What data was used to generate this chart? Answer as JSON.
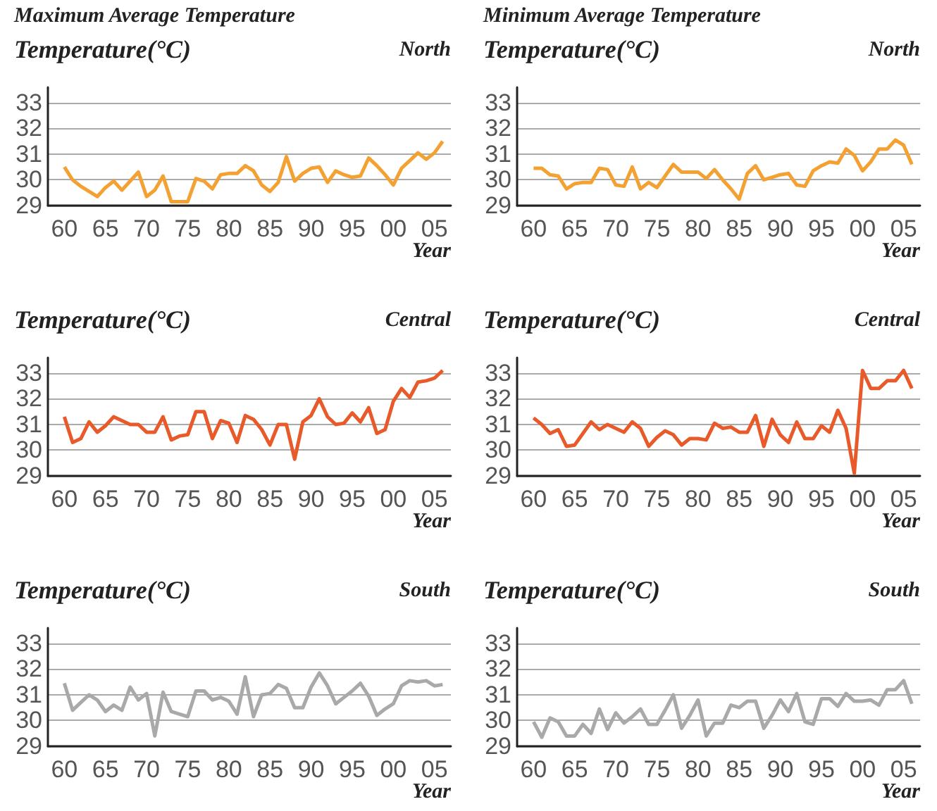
{
  "chart_data": [
    {
      "type": "line",
      "title": "Maximum Average Temperature",
      "ylabel": "Temperature(°C)",
      "subtitle": "North",
      "xlabel": "Year",
      "color": "#f3a132",
      "marker": "none",
      "grid": "y",
      "x": [
        1960,
        1961,
        1962,
        1963,
        1964,
        1965,
        1966,
        1967,
        1968,
        1969,
        1970,
        1971,
        1972,
        1973,
        1974,
        1975,
        1976,
        1977,
        1978,
        1979,
        1980,
        1981,
        1982,
        1983,
        1984,
        1985,
        1986,
        1987,
        1988,
        1989,
        1990,
        1991,
        1992,
        1993,
        1994,
        1995,
        1996,
        1997,
        1998,
        1999,
        2000,
        2001,
        2002,
        2003,
        2004,
        2005,
        2006
      ],
      "values": [
        30.5,
        30.0,
        29.75,
        29.55,
        29.35,
        29.7,
        29.95,
        29.6,
        29.95,
        30.3,
        29.35,
        29.6,
        30.15,
        29.15,
        29.15,
        29.15,
        30.05,
        29.95,
        29.65,
        30.2,
        30.25,
        30.25,
        30.55,
        30.35,
        29.8,
        29.55,
        29.9,
        30.9,
        29.95,
        30.25,
        30.45,
        30.5,
        29.9,
        30.35,
        30.2,
        30.1,
        30.15,
        30.85,
        30.55,
        30.2,
        29.8,
        30.45,
        30.75,
        31.05,
        30.8,
        31.05,
        31.5
      ],
      "xlim": [
        1958,
        2007
      ],
      "xticks": [
        {
          "value": 1960,
          "label": "60"
        },
        {
          "value": 1965,
          "label": "65"
        },
        {
          "value": 1970,
          "label": "70"
        },
        {
          "value": 1975,
          "label": "75"
        },
        {
          "value": 1980,
          "label": "80"
        },
        {
          "value": 1985,
          "label": "85"
        },
        {
          "value": 1990,
          "label": "90"
        },
        {
          "value": 1995,
          "label": "95"
        },
        {
          "value": 2000,
          "label": "00"
        },
        {
          "value": 2005,
          "label": "05"
        }
      ],
      "ylim": [
        29,
        33.6
      ],
      "yticks": [
        29,
        30,
        31,
        32,
        33
      ]
    },
    {
      "type": "line",
      "title": "Minimum Average Temperature",
      "ylabel": "Temperature(°C)",
      "subtitle": "North",
      "xlabel": "Year",
      "color": "#f3a132",
      "marker": "none",
      "grid": "y",
      "x": [
        1960,
        1961,
        1962,
        1963,
        1964,
        1965,
        1966,
        1967,
        1968,
        1969,
        1970,
        1971,
        1972,
        1973,
        1974,
        1975,
        1976,
        1977,
        1978,
        1979,
        1980,
        1981,
        1982,
        1983,
        1984,
        1985,
        1986,
        1987,
        1988,
        1989,
        1990,
        1991,
        1992,
        1993,
        1994,
        1995,
        1996,
        1997,
        1998,
        1999,
        2000,
        2001,
        2002,
        2003,
        2004,
        2005,
        2006
      ],
      "values": [
        30.45,
        30.45,
        30.2,
        30.15,
        29.65,
        29.85,
        29.9,
        29.9,
        30.45,
        30.4,
        29.8,
        29.75,
        30.5,
        29.65,
        29.9,
        29.7,
        30.15,
        30.6,
        30.3,
        30.3,
        30.3,
        30.05,
        30.4,
        30.0,
        29.65,
        29.25,
        30.25,
        30.55,
        30.0,
        30.1,
        30.2,
        30.25,
        29.8,
        29.75,
        30.35,
        30.55,
        30.7,
        30.65,
        31.2,
        30.95,
        30.35,
        30.7,
        31.2,
        31.2,
        31.55,
        31.35,
        30.6
      ],
      "xlim": [
        1958,
        2007
      ],
      "xticks": [
        {
          "value": 1960,
          "label": "60"
        },
        {
          "value": 1965,
          "label": "65"
        },
        {
          "value": 1970,
          "label": "70"
        },
        {
          "value": 1975,
          "label": "75"
        },
        {
          "value": 1980,
          "label": "80"
        },
        {
          "value": 1985,
          "label": "85"
        },
        {
          "value": 1990,
          "label": "90"
        },
        {
          "value": 1995,
          "label": "95"
        },
        {
          "value": 2000,
          "label": "00"
        },
        {
          "value": 2005,
          "label": "05"
        }
      ],
      "ylim": [
        29,
        33.6
      ],
      "yticks": [
        29,
        30,
        31,
        32,
        33
      ]
    },
    {
      "type": "line",
      "ylabel": "Temperature(°C)",
      "subtitle": "Central",
      "xlabel": "Year",
      "color": "#e85a2a",
      "marker": "none",
      "grid": "y",
      "x": [
        1960,
        1961,
        1962,
        1963,
        1964,
        1965,
        1966,
        1967,
        1968,
        1969,
        1970,
        1971,
        1972,
        1973,
        1974,
        1975,
        1976,
        1977,
        1978,
        1979,
        1980,
        1981,
        1982,
        1983,
        1984,
        1985,
        1986,
        1987,
        1988,
        1989,
        1990,
        1991,
        1992,
        1993,
        1994,
        1995,
        1996,
        1997,
        1998,
        1999,
        2000,
        2001,
        2002,
        2003,
        2004,
        2005,
        2006
      ],
      "values": [
        31.3,
        30.3,
        30.45,
        31.1,
        30.7,
        30.95,
        31.3,
        31.15,
        31.0,
        31.0,
        30.7,
        30.7,
        31.3,
        30.4,
        30.55,
        30.6,
        31.5,
        31.5,
        30.45,
        31.15,
        31.05,
        30.3,
        31.35,
        31.2,
        30.8,
        30.2,
        31.0,
        31.0,
        29.65,
        31.1,
        31.35,
        32.0,
        31.3,
        31.0,
        31.05,
        31.45,
        31.1,
        31.65,
        30.65,
        30.8,
        31.9,
        32.4,
        32.05,
        32.65,
        32.7,
        32.8,
        33.1
      ],
      "xlim": [
        1958,
        2007
      ],
      "xticks": [
        {
          "value": 1960,
          "label": "60"
        },
        {
          "value": 1965,
          "label": "65"
        },
        {
          "value": 1970,
          "label": "70"
        },
        {
          "value": 1975,
          "label": "75"
        },
        {
          "value": 1980,
          "label": "80"
        },
        {
          "value": 1985,
          "label": "85"
        },
        {
          "value": 1990,
          "label": "90"
        },
        {
          "value": 1995,
          "label": "95"
        },
        {
          "value": 2000,
          "label": "00"
        },
        {
          "value": 2005,
          "label": "05"
        }
      ],
      "ylim": [
        29,
        33.6
      ],
      "yticks": [
        29,
        30,
        31,
        32,
        33
      ]
    },
    {
      "type": "line",
      "ylabel": "Temperature(°C)",
      "subtitle": "Central",
      "xlabel": "Year",
      "color": "#e85a2a",
      "marker": "none",
      "grid": "y",
      "x": [
        1960,
        1961,
        1962,
        1963,
        1964,
        1965,
        1966,
        1967,
        1968,
        1969,
        1970,
        1971,
        1972,
        1973,
        1974,
        1975,
        1976,
        1977,
        1978,
        1979,
        1980,
        1981,
        1982,
        1983,
        1984,
        1985,
        1986,
        1987,
        1988,
        1989,
        1990,
        1991,
        1992,
        1993,
        1994,
        1995,
        1996,
        1997,
        1998,
        1999,
        2000,
        2001,
        2002,
        2003,
        2004,
        2005,
        2006
      ],
      "values": [
        31.25,
        31.0,
        30.65,
        30.8,
        30.15,
        30.2,
        30.65,
        31.1,
        30.8,
        31.0,
        30.85,
        30.7,
        31.1,
        30.85,
        30.15,
        30.5,
        30.75,
        30.6,
        30.2,
        30.45,
        30.45,
        30.4,
        31.05,
        30.85,
        30.9,
        30.7,
        30.7,
        31.35,
        30.15,
        31.2,
        30.6,
        30.3,
        31.1,
        30.45,
        30.45,
        30.95,
        30.7,
        31.55,
        30.85,
        29.1,
        33.1,
        32.4,
        32.4,
        32.7,
        32.7,
        33.1,
        32.4
      ],
      "xlim": [
        1958,
        2007
      ],
      "xticks": [
        {
          "value": 1960,
          "label": "60"
        },
        {
          "value": 1965,
          "label": "65"
        },
        {
          "value": 1970,
          "label": "70"
        },
        {
          "value": 1975,
          "label": "75"
        },
        {
          "value": 1980,
          "label": "80"
        },
        {
          "value": 1985,
          "label": "85"
        },
        {
          "value": 1990,
          "label": "90"
        },
        {
          "value": 1995,
          "label": "95"
        },
        {
          "value": 2000,
          "label": "00"
        },
        {
          "value": 2005,
          "label": "05"
        }
      ],
      "ylim": [
        29,
        33.6
      ],
      "yticks": [
        29,
        30,
        31,
        32,
        33
      ]
    },
    {
      "type": "line",
      "ylabel": "Temperature(°C)",
      "subtitle": "South",
      "xlabel": "Year",
      "color": "#a9a9a9",
      "marker": "none",
      "grid": "y",
      "x": [
        1960,
        1961,
        1962,
        1963,
        1964,
        1965,
        1966,
        1967,
        1968,
        1969,
        1970,
        1971,
        1972,
        1973,
        1974,
        1975,
        1976,
        1977,
        1978,
        1979,
        1980,
        1981,
        1982,
        1983,
        1984,
        1985,
        1986,
        1987,
        1988,
        1989,
        1990,
        1991,
        1992,
        1993,
        1994,
        1995,
        1996,
        1997,
        1998,
        1999,
        2000,
        2001,
        2002,
        2003,
        2004,
        2005,
        2006
      ],
      "values": [
        31.45,
        30.4,
        30.7,
        31.0,
        30.8,
        30.35,
        30.6,
        30.4,
        31.3,
        30.8,
        31.05,
        29.4,
        31.1,
        30.35,
        30.25,
        30.15,
        31.15,
        31.15,
        30.8,
        30.9,
        30.75,
        30.25,
        31.7,
        30.15,
        31.0,
        31.05,
        31.4,
        31.25,
        30.5,
        30.5,
        31.3,
        31.85,
        31.35,
        30.65,
        30.9,
        31.15,
        31.45,
        30.95,
        30.2,
        30.45,
        30.65,
        31.35,
        31.55,
        31.5,
        31.55,
        31.35,
        31.4
      ],
      "xlim": [
        1958,
        2007
      ],
      "xticks": [
        {
          "value": 1960,
          "label": "60"
        },
        {
          "value": 1965,
          "label": "65"
        },
        {
          "value": 1970,
          "label": "70"
        },
        {
          "value": 1975,
          "label": "75"
        },
        {
          "value": 1980,
          "label": "80"
        },
        {
          "value": 1985,
          "label": "85"
        },
        {
          "value": 1990,
          "label": "90"
        },
        {
          "value": 1995,
          "label": "95"
        },
        {
          "value": 2000,
          "label": "00"
        },
        {
          "value": 2005,
          "label": "05"
        }
      ],
      "ylim": [
        29,
        33.6
      ],
      "yticks": [
        29,
        30,
        31,
        32,
        33
      ]
    },
    {
      "type": "line",
      "ylabel": "Temperature(°C)",
      "subtitle": "South",
      "xlabel": "Year",
      "color": "#a9a9a9",
      "marker": "none",
      "grid": "y",
      "x": [
        1960,
        1961,
        1962,
        1963,
        1964,
        1965,
        1966,
        1967,
        1968,
        1969,
        1970,
        1971,
        1972,
        1973,
        1974,
        1975,
        1976,
        1977,
        1978,
        1979,
        1980,
        1981,
        1982,
        1983,
        1984,
        1985,
        1986,
        1987,
        1988,
        1989,
        1990,
        1991,
        1992,
        1993,
        1994,
        1995,
        1996,
        1997,
        1998,
        1999,
        2000,
        2001,
        2002,
        2003,
        2004,
        2005,
        2006
      ],
      "values": [
        29.95,
        29.35,
        30.1,
        29.95,
        29.4,
        29.4,
        29.85,
        29.5,
        30.45,
        29.65,
        30.3,
        29.9,
        30.15,
        30.45,
        29.85,
        29.85,
        30.4,
        31.0,
        29.7,
        30.2,
        30.8,
        29.4,
        29.9,
        29.9,
        30.6,
        30.5,
        30.75,
        30.75,
        29.7,
        30.2,
        30.8,
        30.35,
        31.05,
        29.95,
        29.85,
        30.85,
        30.85,
        30.55,
        31.05,
        30.75,
        30.75,
        30.8,
        30.6,
        31.2,
        31.2,
        31.55,
        30.65
      ],
      "xlim": [
        1958,
        2007
      ],
      "xticks": [
        {
          "value": 1960,
          "label": "60"
        },
        {
          "value": 1965,
          "label": "65"
        },
        {
          "value": 1970,
          "label": "70"
        },
        {
          "value": 1975,
          "label": "75"
        },
        {
          "value": 1980,
          "label": "80"
        },
        {
          "value": 1985,
          "label": "85"
        },
        {
          "value": 1990,
          "label": "90"
        },
        {
          "value": 1995,
          "label": "95"
        },
        {
          "value": 2000,
          "label": "00"
        },
        {
          "value": 2005,
          "label": "05"
        }
      ],
      "ylim": [
        29,
        33.6
      ],
      "yticks": [
        29,
        30,
        31,
        32,
        33
      ]
    }
  ]
}
